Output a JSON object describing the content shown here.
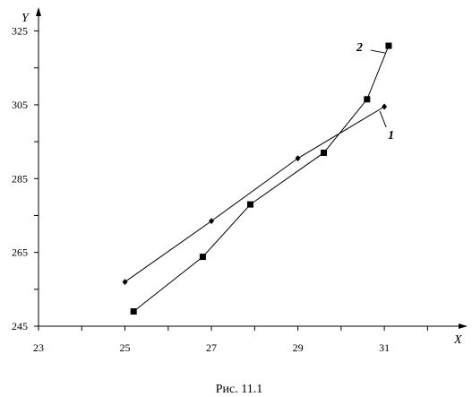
{
  "chart_data": {
    "type": "line",
    "title": "",
    "caption": "Рис. 11.1",
    "xlabel": "X",
    "ylabel": "Y",
    "xlim": [
      23,
      32.8
    ],
    "ylim": [
      245,
      330
    ],
    "xticks": [
      23,
      24,
      25,
      26,
      27,
      28,
      29,
      30,
      31,
      32
    ],
    "xtick_labels": [
      "23",
      "25",
      "27",
      "29",
      "31"
    ],
    "yticks": [
      245,
      255,
      265,
      275,
      285,
      295,
      305,
      315,
      325
    ],
    "ytick_labels": [
      "245",
      "265",
      "285",
      "305",
      "325"
    ],
    "grid": false,
    "series": [
      {
        "name": "1",
        "marker": "diamond",
        "x": [
          25,
          27,
          29,
          31
        ],
        "y": [
          257,
          273.5,
          290.5,
          304.5
        ]
      },
      {
        "name": "2",
        "marker": "square",
        "x": [
          25.2,
          26.8,
          27.9,
          29.6,
          30.6,
          31.1
        ],
        "y": [
          249,
          263.8,
          278,
          292,
          306.5,
          321
        ]
      }
    ]
  }
}
